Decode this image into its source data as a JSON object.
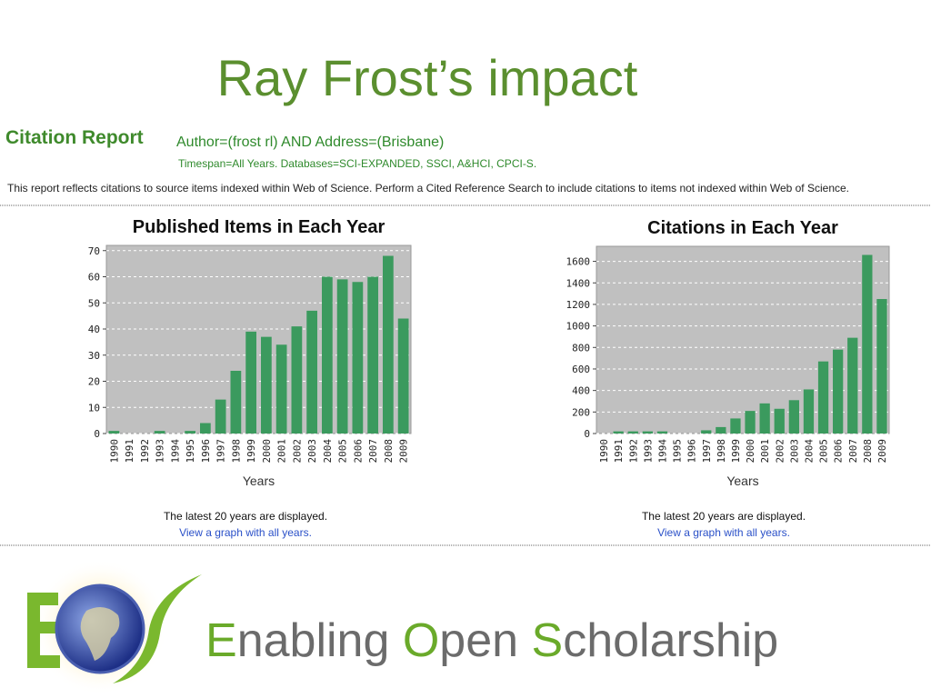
{
  "slide": {
    "title": "Ray Frost’s impact"
  },
  "report": {
    "heading": "Citation Report",
    "query": "Author=(frost rl) AND Address=(Brisbane)",
    "timespan": "Timespan=All Years. Databases=SCI-EXPANDED, SSCI, A&HCI, CPCI-S.",
    "notice": "This report reflects citations to source items indexed within Web of Science. Perform a Cited Reference Search to include citations to items not indexed within Web of Science."
  },
  "chart_data": [
    {
      "type": "bar",
      "title": "Published Items in Each Year",
      "xlabel": "Years",
      "categories": [
        "1990",
        "1991",
        "1992",
        "1993",
        "1994",
        "1995",
        "1996",
        "1997",
        "1998",
        "1999",
        "2000",
        "2001",
        "2002",
        "2003",
        "2004",
        "2005",
        "2006",
        "2007",
        "2008",
        "2009"
      ],
      "values": [
        1,
        0,
        0,
        1,
        0,
        1,
        4,
        13,
        24,
        39,
        37,
        34,
        41,
        47,
        60,
        59,
        58,
        60,
        68,
        44
      ],
      "color": "#3b9a5e",
      "ylim": [
        0,
        72
      ],
      "yticks": [
        0,
        10,
        20,
        30,
        40,
        50,
        60,
        70
      ],
      "grid": true,
      "note": "The latest 20 years are displayed.",
      "link": "View a graph with all years."
    },
    {
      "type": "bar",
      "title": "Citations in Each Year",
      "xlabel": "Years",
      "categories": [
        "1990",
        "1991",
        "1992",
        "1993",
        "1994",
        "1995",
        "1996",
        "1997",
        "1998",
        "1999",
        "2000",
        "2001",
        "2002",
        "2003",
        "2004",
        "2005",
        "2006",
        "2007",
        "2008",
        "2009"
      ],
      "values": [
        0,
        20,
        20,
        20,
        20,
        0,
        0,
        30,
        60,
        140,
        210,
        280,
        230,
        310,
        410,
        670,
        780,
        890,
        1660,
        1250
      ],
      "color": "#3b9a5e",
      "ylim": [
        0,
        1740
      ],
      "yticks": [
        0,
        200,
        400,
        600,
        800,
        1000,
        1200,
        1400,
        1600
      ],
      "grid": true,
      "note": "The latest 20 years are displayed.",
      "link": "View a graph with all years."
    }
  ],
  "footer": {
    "tagline": [
      "E",
      "nabling ",
      "O",
      "pen ",
      "S",
      "cholarship"
    ]
  }
}
